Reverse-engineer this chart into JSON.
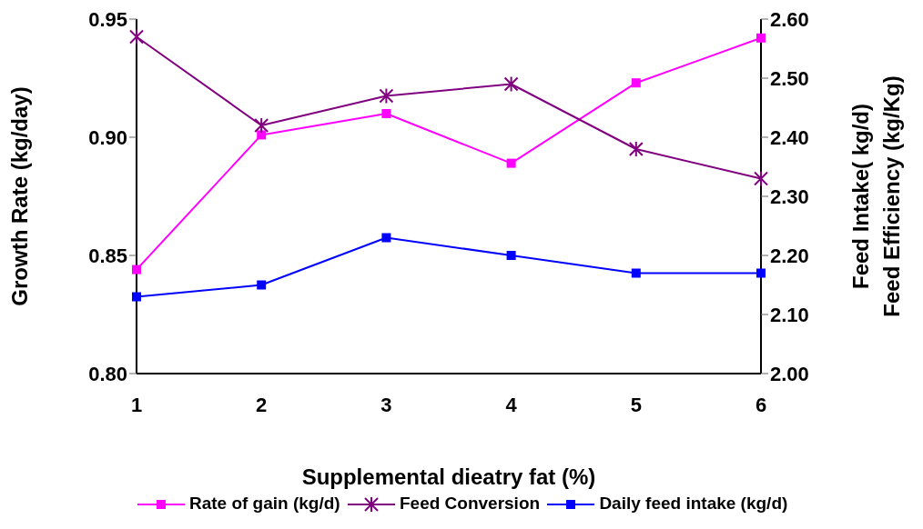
{
  "chart_data": {
    "type": "line",
    "categories": [
      "1",
      "2",
      "3",
      "4",
      "5",
      "6"
    ],
    "xlabel": "Supplemental dieatry fat (%)",
    "ylabel": "Growth Rate (kg/day)",
    "y2label": "Feed Intake( kg/d)\nFeed Efficiency (kg/Kg)",
    "ylim": [
      0.8,
      0.95
    ],
    "yticks": [
      {
        "value": 0.8,
        "label": "0.80"
      },
      {
        "value": 0.85,
        "label": "0.85"
      },
      {
        "value": 0.9,
        "label": "0.90"
      },
      {
        "value": 0.95,
        "label": "0.95"
      }
    ],
    "y2lim": [
      2.0,
      2.6
    ],
    "y2ticks": [
      {
        "value": 2.0,
        "label": "2.00"
      },
      {
        "value": 2.1,
        "label": "2.10"
      },
      {
        "value": 2.2,
        "label": "2.20"
      },
      {
        "value": 2.3,
        "label": "2.30"
      },
      {
        "value": 2.4,
        "label": "2.40"
      },
      {
        "value": 2.5,
        "label": "2.50"
      },
      {
        "value": 2.6,
        "label": "2.60"
      }
    ],
    "grid": false,
    "legend": "bottom",
    "series": [
      {
        "name": "Rate of gain (kg/d)",
        "color": "#ff00ff",
        "marker": "square",
        "values": [
          0.844,
          0.901,
          0.91,
          0.889,
          0.923,
          0.942
        ]
      },
      {
        "name": "Feed Conversion",
        "color": "#800080",
        "marker": "cross",
        "axis": "y2",
        "values": [
          2.57,
          2.42,
          2.47,
          2.49,
          2.38,
          2.33
        ]
      },
      {
        "name": "Daily feed intake (kg/d)",
        "color": "#0000ff",
        "marker": "square",
        "axis": "y2",
        "values": [
          2.13,
          2.15,
          2.23,
          2.2,
          2.17,
          2.17
        ]
      }
    ]
  }
}
